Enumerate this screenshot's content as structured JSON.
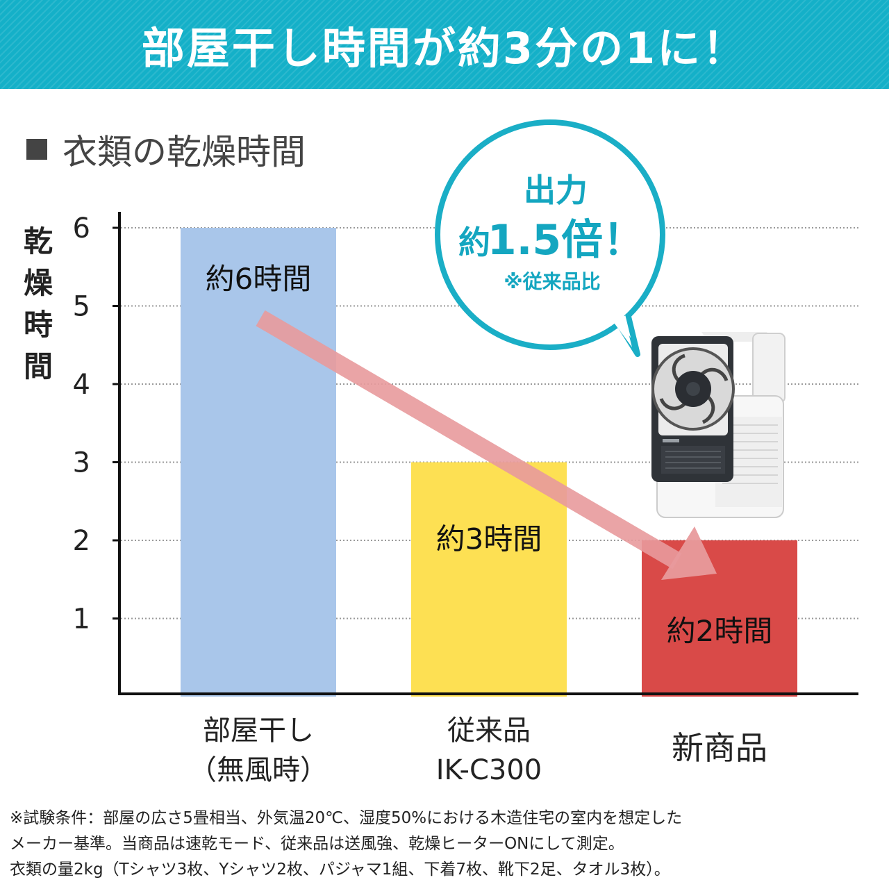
{
  "banner": {
    "title": "部屋干し時間が約3分の1に！"
  },
  "section_title": "衣類の乾燥時間",
  "bubble": {
    "line1": "出力",
    "prefix": "約",
    "big": "1.5倍！",
    "note": "※従来品比"
  },
  "colors": {
    "accent": "#14b0c8",
    "bar1": "#a9c6ea",
    "bar2": "#fde053",
    "bar3": "#d94a48",
    "arrow": "#e89a9c"
  },
  "icons": {
    "product": "clothes-dryer-fan-image"
  },
  "chart_data": {
    "type": "bar",
    "title": "衣類の乾燥時間",
    "ylabel": "乾燥時間",
    "ylim": [
      0,
      6
    ],
    "yticks": [
      "1",
      "2",
      "3",
      "4",
      "5",
      "6"
    ],
    "grid": true,
    "categories": [
      {
        "line1": "部屋干し",
        "line2": "（無風時）"
      },
      {
        "line1": "従来品",
        "line2": "IK-C300"
      },
      {
        "line1": "新商品",
        "line2": ""
      }
    ],
    "values": [
      6,
      3,
      2
    ],
    "value_labels": [
      "約6時間",
      "約3時間",
      "約2時間"
    ]
  },
  "footnote": [
    "※試験条件：部屋の広さ5畳相当、外気温20℃、湿度50%における木造住宅の室内を想定した",
    "メーカー基準。当商品は速乾モード、従来品は送風強、乾燥ヒーターONにして測定。",
    "衣類の量2kg（Tシャツ3枚、Yシャツ2枚、パジャマ1組、下着7枚、靴下2足、タオル3枚）。"
  ]
}
